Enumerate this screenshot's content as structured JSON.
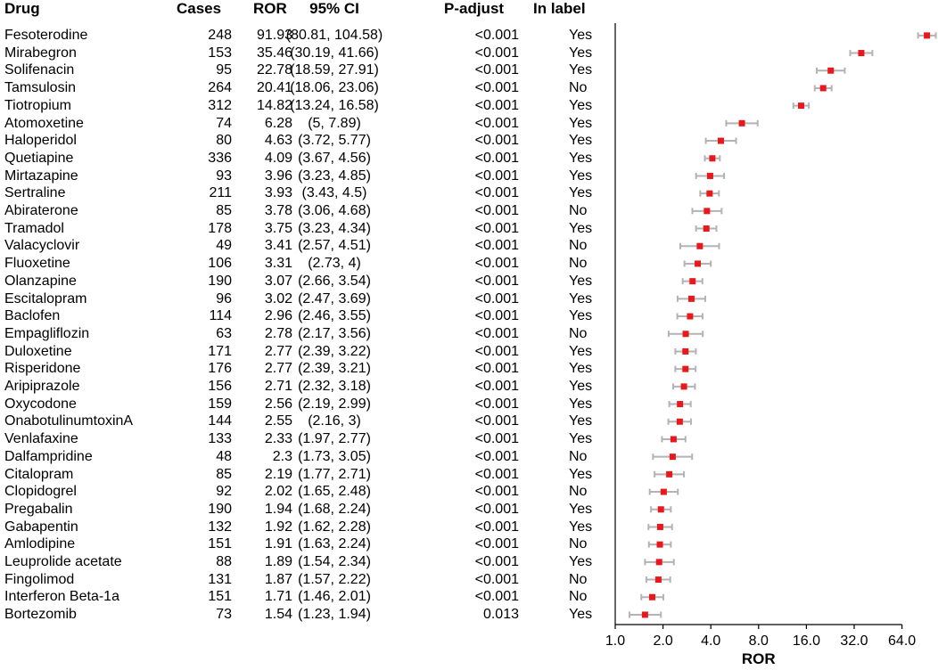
{
  "chart_data": {
    "type": "forest",
    "x_scale": "log2",
    "xlabel": "ROR",
    "x_ticks": [
      "1.0",
      "2.0",
      "4.0",
      "8.0",
      "16.0",
      "32.0",
      "64.0"
    ],
    "x_tick_values": [
      1,
      2,
      4,
      8,
      16,
      32,
      64
    ],
    "colors": {
      "point": "#e8191c",
      "ci": "#b3b3b3",
      "axis": "#000000"
    },
    "headers": {
      "drug": "Drug",
      "cases": "Cases",
      "ror": "ROR",
      "ci": "95% CI",
      "p": "P-adjust",
      "label": "In label"
    },
    "rows": [
      {
        "drug": "Fesoterodine",
        "cases": "248",
        "ror": "91.93",
        "ci": "(80.81, 104.58)",
        "p": "<0.001",
        "label": "Yes",
        "ror_v": 91.93,
        "lo": 80.81,
        "hi": 104.58
      },
      {
        "drug": "Mirabegron",
        "cases": "153",
        "ror": "35.46",
        "ci": "(30.19, 41.66)",
        "p": "<0.001",
        "label": "Yes",
        "ror_v": 35.46,
        "lo": 30.19,
        "hi": 41.66
      },
      {
        "drug": "Solifenacin",
        "cases": "95",
        "ror": "22.78",
        "ci": "(18.59, 27.91)",
        "p": "<0.001",
        "label": "Yes",
        "ror_v": 22.78,
        "lo": 18.59,
        "hi": 27.91
      },
      {
        "drug": "Tamsulosin",
        "cases": "264",
        "ror": "20.41",
        "ci": "(18.06, 23.06)",
        "p": "<0.001",
        "label": "No",
        "ror_v": 20.41,
        "lo": 18.06,
        "hi": 23.06
      },
      {
        "drug": "Tiotropium",
        "cases": "312",
        "ror": "14.82",
        "ci": "(13.24, 16.58)",
        "p": "<0.001",
        "label": "Yes",
        "ror_v": 14.82,
        "lo": 13.24,
        "hi": 16.58
      },
      {
        "drug": "Atomoxetine",
        "cases": "74",
        "ror": "6.28",
        "ci": "(5, 7.89)",
        "p": "<0.001",
        "label": "Yes",
        "ror_v": 6.28,
        "lo": 5,
        "hi": 7.89
      },
      {
        "drug": "Haloperidol",
        "cases": "80",
        "ror": "4.63",
        "ci": "(3.72, 5.77)",
        "p": "<0.001",
        "label": "Yes",
        "ror_v": 4.63,
        "lo": 3.72,
        "hi": 5.77
      },
      {
        "drug": "Quetiapine",
        "cases": "336",
        "ror": "4.09",
        "ci": "(3.67, 4.56)",
        "p": "<0.001",
        "label": "Yes",
        "ror_v": 4.09,
        "lo": 3.67,
        "hi": 4.56
      },
      {
        "drug": "Mirtazapine",
        "cases": "93",
        "ror": "3.96",
        "ci": "(3.23, 4.85)",
        "p": "<0.001",
        "label": "Yes",
        "ror_v": 3.96,
        "lo": 3.23,
        "hi": 4.85
      },
      {
        "drug": "Sertraline",
        "cases": "211",
        "ror": "3.93",
        "ci": "(3.43, 4.5)",
        "p": "<0.001",
        "label": "Yes",
        "ror_v": 3.93,
        "lo": 3.43,
        "hi": 4.5
      },
      {
        "drug": "Abiraterone",
        "cases": "85",
        "ror": "3.78",
        "ci": "(3.06, 4.68)",
        "p": "<0.001",
        "label": "No",
        "ror_v": 3.78,
        "lo": 3.06,
        "hi": 4.68
      },
      {
        "drug": "Tramadol",
        "cases": "178",
        "ror": "3.75",
        "ci": "(3.23, 4.34)",
        "p": "<0.001",
        "label": "Yes",
        "ror_v": 3.75,
        "lo": 3.23,
        "hi": 4.34
      },
      {
        "drug": "Valacyclovir",
        "cases": "49",
        "ror": "3.41",
        "ci": "(2.57, 4.51)",
        "p": "<0.001",
        "label": "No",
        "ror_v": 3.41,
        "lo": 2.57,
        "hi": 4.51
      },
      {
        "drug": "Fluoxetine",
        "cases": "106",
        "ror": "3.31",
        "ci": "(2.73, 4)",
        "p": "<0.001",
        "label": "No",
        "ror_v": 3.31,
        "lo": 2.73,
        "hi": 4
      },
      {
        "drug": "Olanzapine",
        "cases": "190",
        "ror": "3.07",
        "ci": "(2.66, 3.54)",
        "p": "<0.001",
        "label": "Yes",
        "ror_v": 3.07,
        "lo": 2.66,
        "hi": 3.54
      },
      {
        "drug": "Escitalopram",
        "cases": "96",
        "ror": "3.02",
        "ci": "(2.47, 3.69)",
        "p": "<0.001",
        "label": "Yes",
        "ror_v": 3.02,
        "lo": 2.47,
        "hi": 3.69
      },
      {
        "drug": "Baclofen",
        "cases": "114",
        "ror": "2.96",
        "ci": "(2.46, 3.55)",
        "p": "<0.001",
        "label": "Yes",
        "ror_v": 2.96,
        "lo": 2.46,
        "hi": 3.55
      },
      {
        "drug": "Empagliflozin",
        "cases": "63",
        "ror": "2.78",
        "ci": "(2.17, 3.56)",
        "p": "<0.001",
        "label": "No",
        "ror_v": 2.78,
        "lo": 2.17,
        "hi": 3.56
      },
      {
        "drug": "Duloxetine",
        "cases": "171",
        "ror": "2.77",
        "ci": "(2.39, 3.22)",
        "p": "<0.001",
        "label": "Yes",
        "ror_v": 2.77,
        "lo": 2.39,
        "hi": 3.22
      },
      {
        "drug": "Risperidone",
        "cases": "176",
        "ror": "2.77",
        "ci": "(2.39, 3.21)",
        "p": "<0.001",
        "label": "Yes",
        "ror_v": 2.77,
        "lo": 2.39,
        "hi": 3.21
      },
      {
        "drug": "Aripiprazole",
        "cases": "156",
        "ror": "2.71",
        "ci": "(2.32, 3.18)",
        "p": "<0.001",
        "label": "Yes",
        "ror_v": 2.71,
        "lo": 2.32,
        "hi": 3.18
      },
      {
        "drug": "Oxycodone",
        "cases": "159",
        "ror": "2.56",
        "ci": "(2.19, 2.99)",
        "p": "<0.001",
        "label": "Yes",
        "ror_v": 2.56,
        "lo": 2.19,
        "hi": 2.99
      },
      {
        "drug": "OnabotulinumtoxinA",
        "cases": "144",
        "ror": "2.55",
        "ci": "(2.16, 3)",
        "p": "<0.001",
        "label": "Yes",
        "ror_v": 2.55,
        "lo": 2.16,
        "hi": 3
      },
      {
        "drug": "Venlafaxine",
        "cases": "133",
        "ror": "2.33",
        "ci": "(1.97, 2.77)",
        "p": "<0.001",
        "label": "Yes",
        "ror_v": 2.33,
        "lo": 1.97,
        "hi": 2.77
      },
      {
        "drug": "Dalfampridine",
        "cases": "48",
        "ror": "2.3",
        "ci": "(1.73, 3.05)",
        "p": "<0.001",
        "label": "No",
        "ror_v": 2.3,
        "lo": 1.73,
        "hi": 3.05
      },
      {
        "drug": "Citalopram",
        "cases": "85",
        "ror": "2.19",
        "ci": "(1.77, 2.71)",
        "p": "<0.001",
        "label": "Yes",
        "ror_v": 2.19,
        "lo": 1.77,
        "hi": 2.71
      },
      {
        "drug": "Clopidogrel",
        "cases": "92",
        "ror": "2.02",
        "ci": "(1.65, 2.48)",
        "p": "<0.001",
        "label": "No",
        "ror_v": 2.02,
        "lo": 1.65,
        "hi": 2.48
      },
      {
        "drug": "Pregabalin",
        "cases": "190",
        "ror": "1.94",
        "ci": "(1.68, 2.24)",
        "p": "<0.001",
        "label": "Yes",
        "ror_v": 1.94,
        "lo": 1.68,
        "hi": 2.24
      },
      {
        "drug": "Gabapentin",
        "cases": "132",
        "ror": "1.92",
        "ci": "(1.62, 2.28)",
        "p": "<0.001",
        "label": "Yes",
        "ror_v": 1.92,
        "lo": 1.62,
        "hi": 2.28
      },
      {
        "drug": "Amlodipine",
        "cases": "151",
        "ror": "1.91",
        "ci": "(1.63, 2.24)",
        "p": "<0.001",
        "label": "No",
        "ror_v": 1.91,
        "lo": 1.63,
        "hi": 2.24
      },
      {
        "drug": "Leuprolide acetate",
        "cases": "88",
        "ror": "1.89",
        "ci": "(1.54, 2.34)",
        "p": "<0.001",
        "label": "Yes",
        "ror_v": 1.89,
        "lo": 1.54,
        "hi": 2.34
      },
      {
        "drug": "Fingolimod",
        "cases": "131",
        "ror": "1.87",
        "ci": "(1.57, 2.22)",
        "p": "<0.001",
        "label": "No",
        "ror_v": 1.87,
        "lo": 1.57,
        "hi": 2.22
      },
      {
        "drug": "Interferon Beta-1a",
        "cases": "151",
        "ror": "1.71",
        "ci": "(1.46, 2.01)",
        "p": "<0.001",
        "label": "No",
        "ror_v": 1.71,
        "lo": 1.46,
        "hi": 2.01
      },
      {
        "drug": "Bortezomib",
        "cases": "73",
        "ror": "1.54",
        "ci": "(1.23, 1.94)",
        "p": "0.013",
        "label": "Yes",
        "ror_v": 1.54,
        "lo": 1.23,
        "hi": 1.94
      }
    ]
  }
}
